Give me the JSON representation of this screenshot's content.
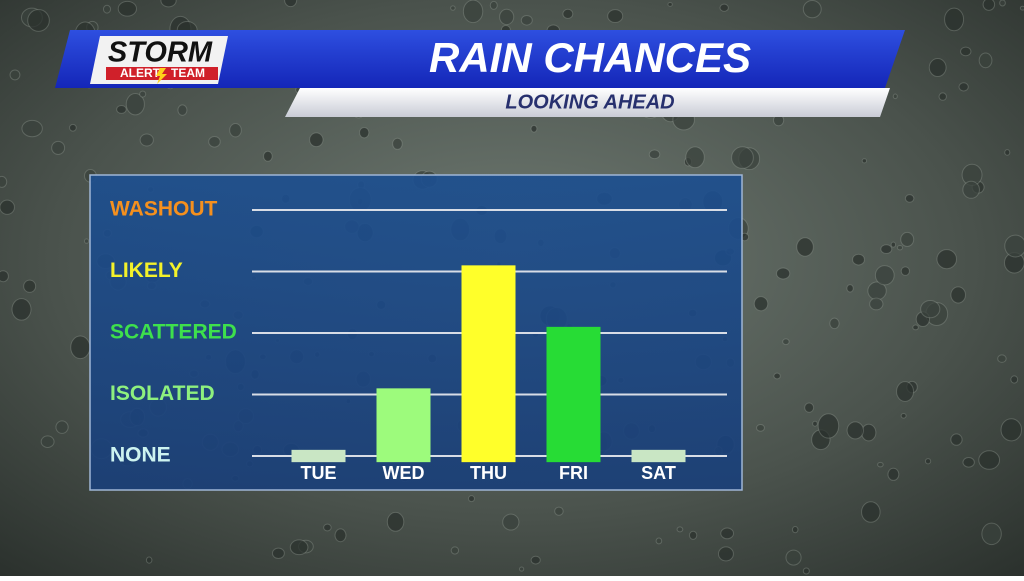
{
  "logo": {
    "top": "STORM",
    "left": "ALERT",
    "right": "TEAM"
  },
  "chart_data": {
    "type": "bar",
    "title": "RAIN CHANCES",
    "subtitle": "LOOKING AHEAD",
    "categories": [
      "TUE",
      "WED",
      "THU",
      "FRI",
      "SAT"
    ],
    "values": [
      0.1,
      1.1,
      3.1,
      2.1,
      0.1
    ],
    "colors": [
      "#c9e6c4",
      "#9dfb7c",
      "#ffff2a",
      "#27dc35",
      "#c9e6c4"
    ],
    "ylim": [
      -0.1,
      4
    ],
    "yticks": [
      {
        "value": 0,
        "label": "NONE"
      },
      {
        "value": 1,
        "label": "ISOLATED"
      },
      {
        "value": 2,
        "label": "SCATTERED"
      },
      {
        "value": 3,
        "label": "LIKELY"
      },
      {
        "value": 4,
        "label": "WASHOUT"
      }
    ],
    "ytick_colors": [
      "#cdf3f0",
      "#8ef07e",
      "#3ee04c",
      "#f4f22a",
      "#f5901e"
    ],
    "grid": true
  }
}
